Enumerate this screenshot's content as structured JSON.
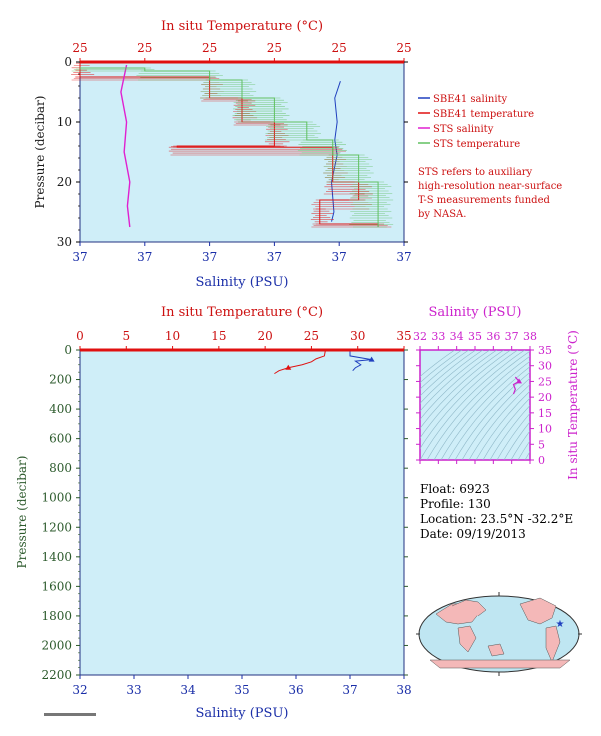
{
  "top_chart": {
    "top_axis_title": "In situ Temperature (°C)",
    "bottom_axis_title": "Salinity (PSU)",
    "y_axis_title": "Pressure (decibar)",
    "top_ticks": [
      "25",
      "25",
      "25",
      "25",
      "25",
      "25"
    ],
    "bottom_ticks": [
      "37",
      "37",
      "37",
      "37",
      "37",
      "37"
    ],
    "y_ticks": [
      "0",
      "10",
      "20",
      "30"
    ],
    "legend": [
      {
        "label": "SBE41 salinity",
        "color": "#1f3fbf"
      },
      {
        "label": "SBE41 temperature",
        "color": "#e01010"
      },
      {
        "label": "STS salinity",
        "color": "#e020d0"
      },
      {
        "label": "STS temperature",
        "color": "#60c060"
      }
    ],
    "note": [
      "STS refers to auxiliary",
      "high-resolution near-surface",
      "T-S measurements funded",
      "by NASA."
    ]
  },
  "bottom_chart": {
    "top_axis_title": "In situ Temperature (°C)",
    "bottom_axis_title": "Salinity (PSU)",
    "y_axis_title": "Pressure (decibar)",
    "top_ticks": [
      "0",
      "5",
      "10",
      "15",
      "20",
      "25",
      "30",
      "35"
    ],
    "bottom_ticks": [
      "32",
      "33",
      "34",
      "35",
      "36",
      "37",
      "38"
    ],
    "y_ticks": [
      "0",
      "200",
      "400",
      "600",
      "800",
      "1000",
      "1200",
      "1400",
      "1600",
      "1800",
      "2000",
      "2200"
    ]
  },
  "ts_chart": {
    "top_axis_title": "Salinity (PSU)",
    "right_axis_title": "In situ Temperature (°C)",
    "top_ticks": [
      "32",
      "33",
      "34",
      "35",
      "36",
      "37",
      "38"
    ],
    "right_ticks": [
      "0",
      "5",
      "10",
      "15",
      "20",
      "25",
      "30",
      "35"
    ]
  },
  "float_info": {
    "float": "Float:  6923",
    "profile": "Profile:  130",
    "location": "Location:  23.5°N  -32.2°E",
    "date": "Date:  09/19/2013"
  },
  "colors": {
    "plot_bg": "#cfeef8",
    "temperature": "#e01010",
    "salinity": "#1f3fbf",
    "sts_salinity": "#e020d0",
    "sts_temperature": "#60c060",
    "ts_axis": "#cc22cc",
    "pressure_axis": "#2c5a2c"
  },
  "chart_data": [
    {
      "type": "line",
      "title": "",
      "ylabel": "Pressure (decibar)",
      "ylim": [
        30,
        0
      ],
      "series": [
        {
          "name": "SBE41 salinity",
          "axis": "salinity",
          "points": [
            [
              0.8,
              3.2
            ],
            [
              0.79,
              6
            ],
            [
              0.79,
              10
            ],
            [
              0.79,
              13
            ],
            [
              0.79,
              15.5
            ],
            [
              0.78,
              20
            ],
            [
              0.78,
              25
            ],
            [
              0.78,
              26.6
            ]
          ]
        },
        {
          "name": "SBE41 temperature",
          "axis": "temperature",
          "points": [
            [
              0.0,
              0.2
            ],
            [
              0.0,
              2.5
            ],
            [
              0.4,
              3
            ],
            [
              0.4,
              6
            ],
            [
              0.5,
              6.5
            ],
            [
              0.5,
              10
            ],
            [
              0.6,
              10.5
            ],
            [
              0.6,
              14
            ],
            [
              0.3,
              14.2
            ],
            [
              0.78,
              15.5
            ],
            [
              0.78,
              20
            ],
            [
              0.86,
              22
            ],
            [
              0.86,
              23
            ],
            [
              0.74,
              24.5
            ],
            [
              0.74,
              27
            ],
            [
              0.92,
              27.5
            ]
          ]
        },
        {
          "name": "STS salinity",
          "axis": "salinity",
          "points": [
            [
              0.14,
              0.5
            ],
            [
              0.13,
              5
            ],
            [
              0.14,
              10
            ],
            [
              0.14,
              15
            ],
            [
              0.15,
              20
            ],
            [
              0.15,
              24
            ],
            [
              0.15,
              27.5
            ]
          ]
        },
        {
          "name": "STS temperature",
          "axis": "temperature",
          "points": [
            [
              0.0,
              1
            ],
            [
              0.2,
              1.5
            ],
            [
              0.4,
              3
            ],
            [
              0.5,
              6
            ],
            [
              0.6,
              10
            ],
            [
              0.7,
              13
            ],
            [
              0.78,
              15.5
            ],
            [
              0.86,
              20
            ],
            [
              0.92,
              27.5
            ]
          ]
        }
      ]
    },
    {
      "type": "line",
      "title": "",
      "ylabel": "Pressure (decibar)",
      "ylim": [
        2200,
        0
      ],
      "series": [
        {
          "name": "",
          "axis": "temperature",
          "xlim": [
            0,
            35
          ],
          "points": [
            [
              26.5,
              5
            ],
            [
              26.4,
              40
            ],
            [
              25.5,
              60
            ],
            [
              25.0,
              80
            ],
            [
              24.0,
              100
            ],
            [
              22.5,
              120
            ],
            [
              21.5,
              140
            ],
            [
              21.0,
              160
            ]
          ]
        },
        {
          "name": "",
          "axis": "salinity",
          "xlim": [
            32,
            38
          ],
          "points": [
            [
              37.0,
              5
            ],
            [
              37.0,
              40
            ],
            [
              37.4,
              65
            ],
            [
              37.1,
              75
            ],
            [
              37.2,
              100
            ],
            [
              37.1,
              120
            ],
            [
              37.05,
              140
            ]
          ]
        }
      ]
    },
    {
      "type": "scatter",
      "title": "",
      "xlabel": "Salinity (PSU)",
      "ylabel": "In situ Temperature (°C)",
      "xlim": [
        32,
        38
      ],
      "ylim": [
        0,
        35
      ],
      "points": [
        [
          37.2,
          26.4
        ],
        [
          37.4,
          25.0
        ],
        [
          37.1,
          24.0
        ],
        [
          37.2,
          22.5
        ],
        [
          37.1,
          21.0
        ]
      ]
    }
  ]
}
